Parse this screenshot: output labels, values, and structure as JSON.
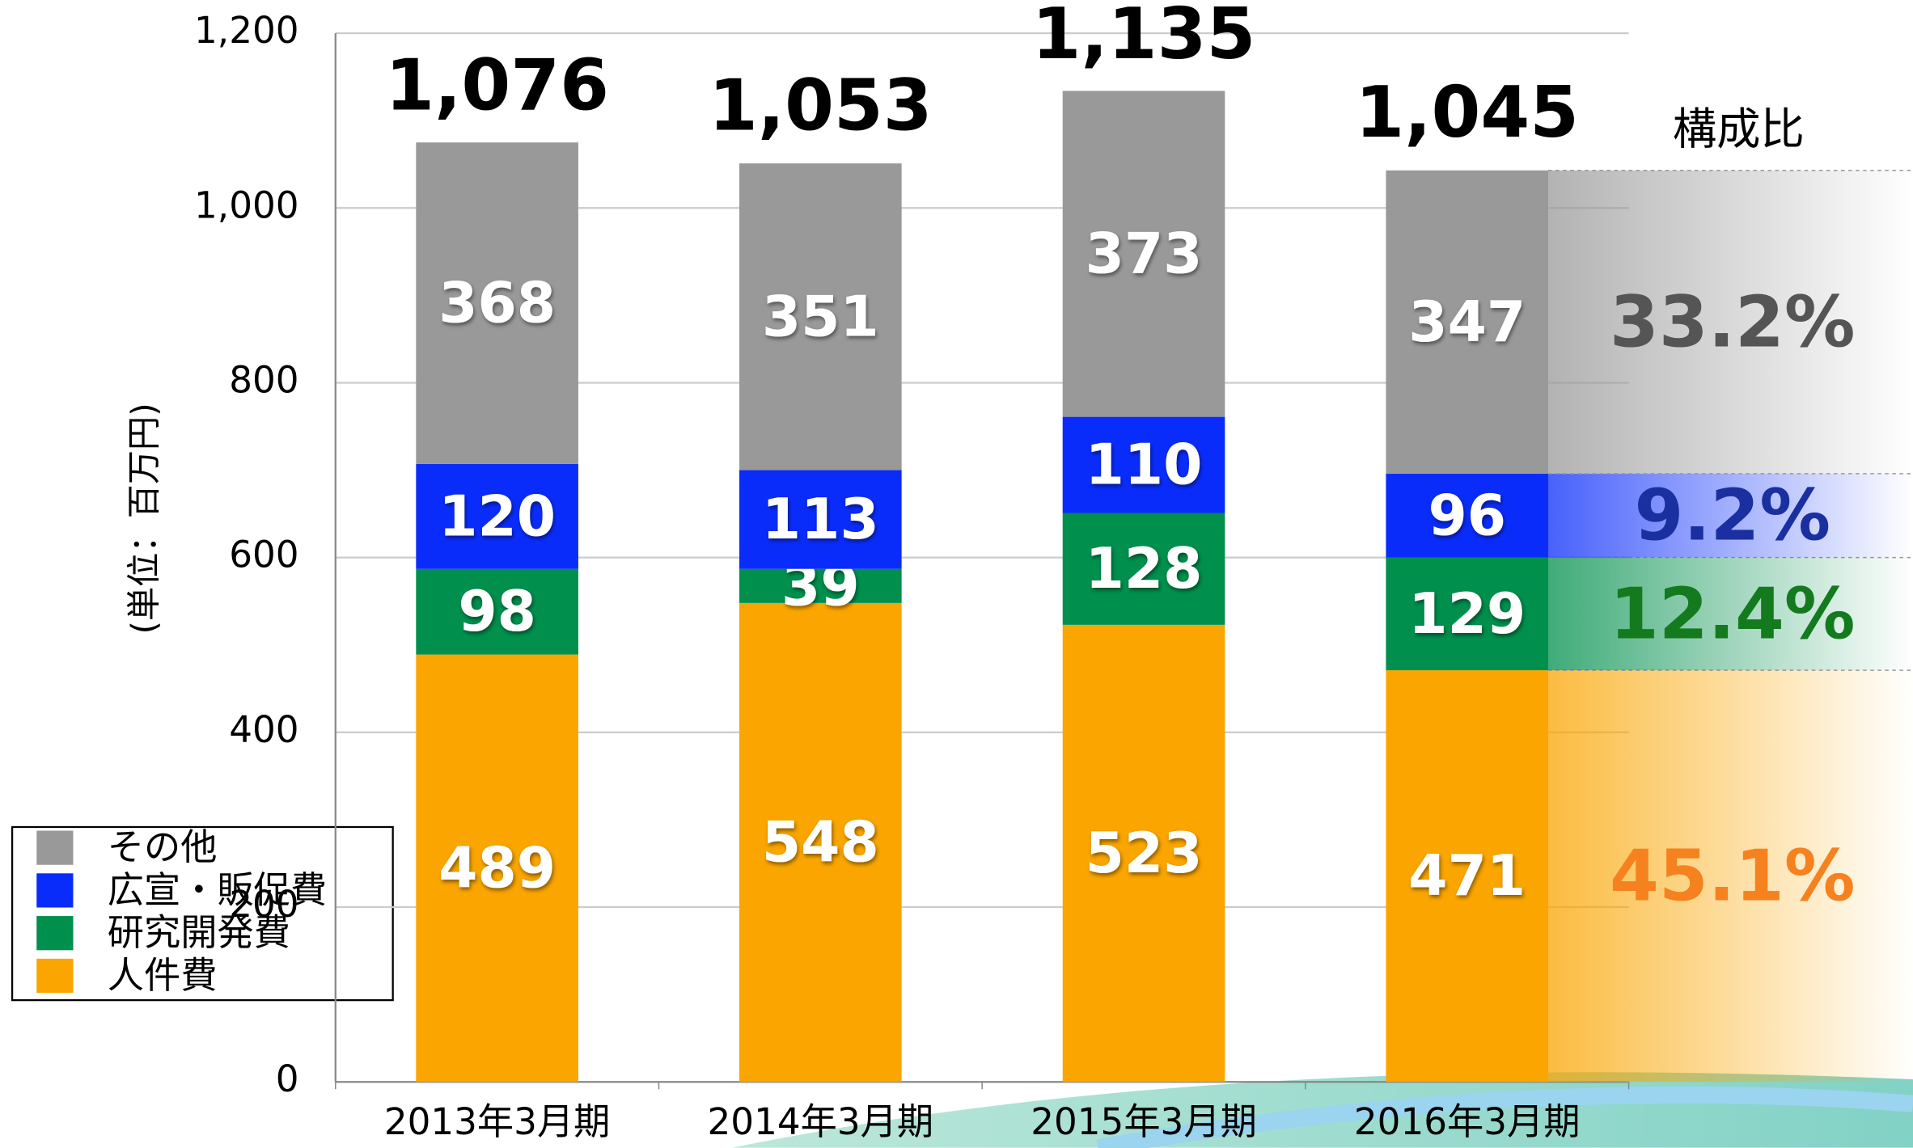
{
  "chart_data": {
    "type": "stacked_bar",
    "y_label": "(単位：百万円)",
    "categories": [
      "2013年3月期",
      "2014年3月期",
      "2015年3月期",
      "2016年3月期"
    ],
    "series": [
      {
        "name": "人件費",
        "color": "#faa500",
        "values": [
          489,
          548,
          523,
          471
        ]
      },
      {
        "name": "研究開発費",
        "color": "#008f4c",
        "values": [
          98,
          39,
          128,
          129
        ]
      },
      {
        "name": "広宣・販促費",
        "color": "#0a2cfa",
        "values": [
          120,
          113,
          110,
          96
        ]
      },
      {
        "name": "その他",
        "color": "#999999",
        "values": [
          368,
          351,
          373,
          347
        ]
      }
    ],
    "totals": {
      "values": [
        1076,
        1053,
        1135,
        1045
      ],
      "value_labels": [
        "1,076",
        "1,053",
        "1,135",
        "1,045"
      ]
    },
    "composition": {
      "title": "構成比",
      "values": [
        45.1,
        12.4,
        9.2,
        33.2
      ],
      "value_labels": [
        "45.1%",
        "12.4%",
        "9.2%",
        "33.2%"
      ],
      "colors": [
        "#f5821f",
        "#147a1e",
        "#1a2fa0",
        "#555555"
      ]
    },
    "ylim": [
      0,
      1200
    ],
    "yticks": [
      0,
      200,
      400,
      600,
      800,
      {
        "value": 1000,
        "label": "1,000"
      },
      {
        "value": 1200,
        "label": "1,200"
      }
    ],
    "grid": true
  }
}
